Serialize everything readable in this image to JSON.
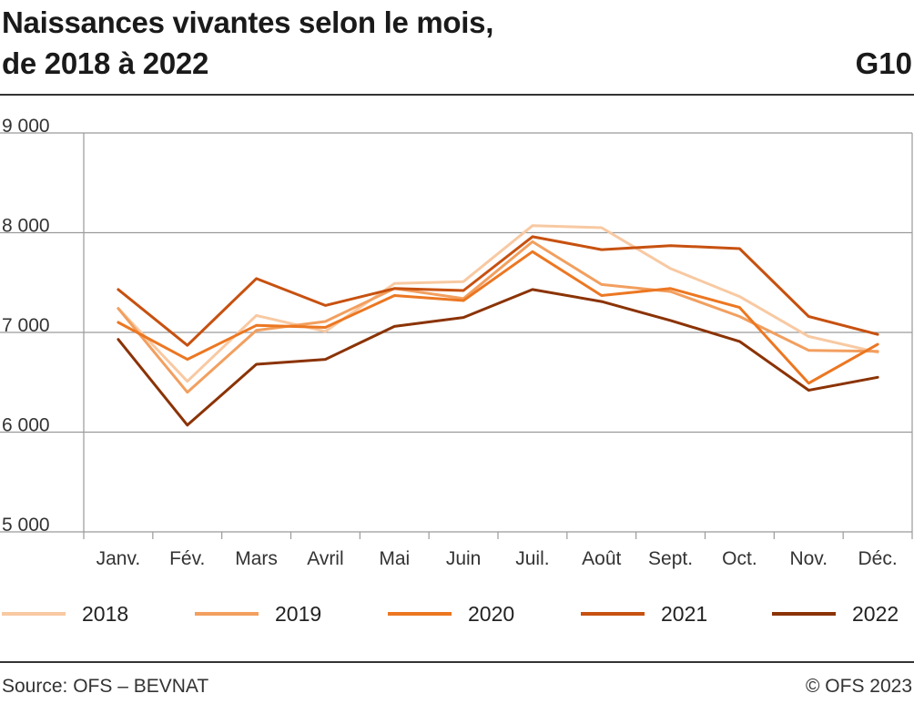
{
  "header": {
    "title_line1": "Naissances vivantes selon le mois,",
    "title_line2": "de 2018 à 2022",
    "figure_code": "G10"
  },
  "footer": {
    "source": "Source: OFS – BEVNAT",
    "copyright": "© OFS 2023"
  },
  "chart_data": {
    "type": "line",
    "title": "Naissances vivantes selon le mois, de 2018 à 2022",
    "xlabel": "",
    "ylabel": "",
    "ylim": [
      5000,
      9000
    ],
    "yticks": [
      5000,
      6000,
      7000,
      8000,
      9000
    ],
    "ytick_labels": [
      "5 000",
      "6 000",
      "7 000",
      "8 000",
      "9 000"
    ],
    "grid": true,
    "legend_position": "bottom",
    "categories": [
      "Janv.",
      "Fév.",
      "Mars",
      "Avril",
      "Mai",
      "Juin",
      "Juil.",
      "Août",
      "Sept.",
      "Oct.",
      "Nov.",
      "Déc."
    ],
    "series": [
      {
        "name": "2018",
        "color": "#f8c9a2",
        "values": [
          7240,
          6510,
          7170,
          7010,
          7490,
          7510,
          8070,
          8050,
          7640,
          7360,
          6960,
          6800
        ]
      },
      {
        "name": "2019",
        "color": "#f29f5f",
        "values": [
          7240,
          6400,
          7020,
          7110,
          7440,
          7340,
          7910,
          7480,
          7410,
          7160,
          6820,
          6810
        ]
      },
      {
        "name": "2020",
        "color": "#ec7722",
        "values": [
          7100,
          6730,
          7070,
          7050,
          7370,
          7320,
          7810,
          7370,
          7440,
          7250,
          6490,
          6880
        ]
      },
      {
        "name": "2021",
        "color": "#c75110",
        "values": [
          7430,
          6870,
          7540,
          7270,
          7440,
          7420,
          7960,
          7830,
          7870,
          7840,
          7160,
          6980
        ]
      },
      {
        "name": "2022",
        "color": "#8b3305",
        "values": [
          6930,
          6070,
          6680,
          6730,
          7060,
          7150,
          7430,
          7310,
          7120,
          6910,
          6420,
          6550
        ]
      }
    ]
  }
}
